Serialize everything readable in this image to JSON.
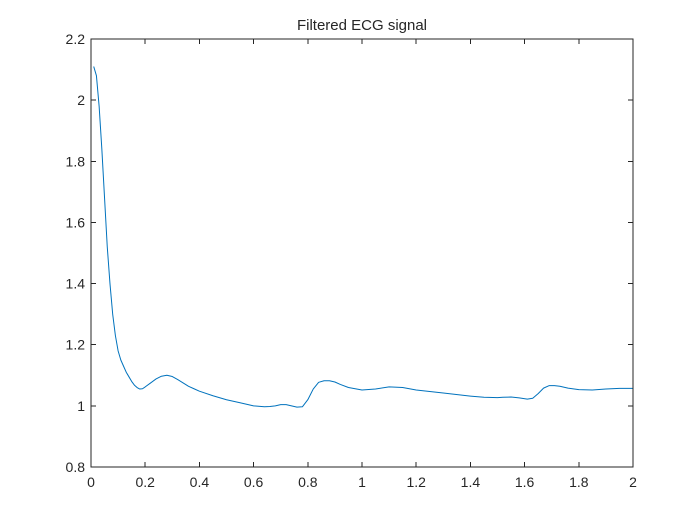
{
  "chart_data": {
    "type": "line",
    "title": "Filtered ECG signal",
    "xlabel": "",
    "ylabel": "",
    "xlim": [
      0,
      2
    ],
    "ylim": [
      0.8,
      2.2
    ],
    "x_ticks": [
      0,
      0.2,
      0.4,
      0.6,
      0.8,
      1,
      1.2,
      1.4,
      1.6,
      1.8,
      2
    ],
    "x_tick_labels": [
      "0",
      "0.2",
      "0.4",
      "0.6",
      "0.8",
      "1",
      "1.2",
      "1.4",
      "1.6",
      "1.8",
      "2"
    ],
    "y_ticks": [
      0.8,
      1,
      1.2,
      1.4,
      1.6,
      1.8,
      2,
      2.2
    ],
    "y_tick_labels": [
      "0.8",
      "1",
      "1.2",
      "1.4",
      "1.6",
      "1.8",
      "2",
      "2.2"
    ],
    "grid": false,
    "box": true,
    "line_color": "#0072BD",
    "series": [
      {
        "x": [
          0.01,
          0.02,
          0.03,
          0.04,
          0.05,
          0.06,
          0.07,
          0.08,
          0.09,
          0.1,
          0.11,
          0.12,
          0.13,
          0.14,
          0.15,
          0.16,
          0.17,
          0.18,
          0.19,
          0.2,
          0.22,
          0.24,
          0.26,
          0.28,
          0.3,
          0.32,
          0.34,
          0.36,
          0.38,
          0.4,
          0.45,
          0.5,
          0.55,
          0.6,
          0.64,
          0.66,
          0.68,
          0.7,
          0.72,
          0.74,
          0.76,
          0.78,
          0.8,
          0.82,
          0.84,
          0.86,
          0.88,
          0.9,
          0.92,
          0.95,
          1.0,
          1.05,
          1.1,
          1.15,
          1.2,
          1.3,
          1.4,
          1.45,
          1.5,
          1.52,
          1.55,
          1.58,
          1.61,
          1.63,
          1.65,
          1.67,
          1.69,
          1.71,
          1.73,
          1.76,
          1.8,
          1.85,
          1.9,
          1.95,
          2.0
        ],
        "y": [
          2.11,
          2.08,
          1.98,
          1.84,
          1.68,
          1.52,
          1.4,
          1.3,
          1.23,
          1.18,
          1.15,
          1.13,
          1.11,
          1.095,
          1.08,
          1.068,
          1.06,
          1.055,
          1.056,
          1.062,
          1.075,
          1.088,
          1.097,
          1.1,
          1.096,
          1.086,
          1.075,
          1.064,
          1.056,
          1.048,
          1.033,
          1.02,
          1.01,
          1.0,
          0.997,
          0.998,
          1.0,
          1.004,
          1.004,
          1.0,
          0.996,
          0.997,
          1.02,
          1.055,
          1.077,
          1.082,
          1.082,
          1.078,
          1.07,
          1.06,
          1.052,
          1.055,
          1.062,
          1.06,
          1.052,
          1.042,
          1.032,
          1.028,
          1.027,
          1.028,
          1.029,
          1.026,
          1.022,
          1.025,
          1.04,
          1.058,
          1.066,
          1.066,
          1.064,
          1.058,
          1.053,
          1.052,
          1.055,
          1.057,
          1.057
        ]
      }
    ]
  }
}
